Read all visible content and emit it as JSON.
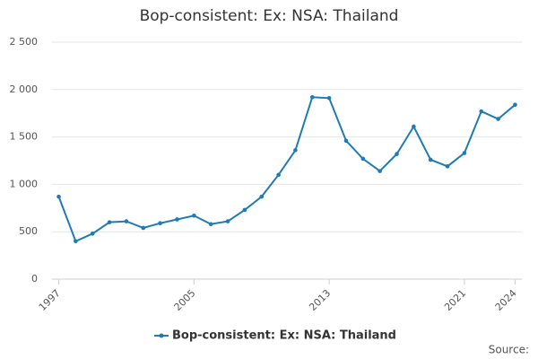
{
  "chart_data": {
    "type": "line",
    "title": "Bop-consistent: Ex: NSA: Thailand",
    "source": "Source:",
    "x": [
      1997,
      1998,
      1999,
      2000,
      2001,
      2002,
      2003,
      2004,
      2005,
      2006,
      2007,
      2008,
      2009,
      2010,
      2011,
      2012,
      2013,
      2014,
      2015,
      2016,
      2017,
      2018,
      2019,
      2020,
      2021,
      2022,
      2023,
      2024
    ],
    "series": [
      {
        "name": "Bop-consistent: Ex: NSA: Thailand",
        "color": "#1f7bb6",
        "values": [
          870,
          400,
          480,
          600,
          610,
          540,
          590,
          630,
          670,
          580,
          610,
          730,
          870,
          1100,
          1360,
          1920,
          1910,
          1460,
          1270,
          1140,
          1320,
          1610,
          1260,
          1190,
          1330,
          1770,
          1690,
          1840
        ]
      }
    ],
    "xlim": [
      1996.6,
      2024.4
    ],
    "xticks": [
      1997,
      2005,
      2013,
      2021,
      2024
    ],
    "ylim": [
      0,
      2500
    ],
    "yticks": [
      0,
      500,
      {
        "value": 1000,
        "label": "1 000"
      },
      {
        "value": 1500,
        "label": "1 500"
      },
      {
        "value": 2000,
        "label": "2 000"
      },
      {
        "value": 2500,
        "label": "2 500"
      }
    ],
    "grid": true,
    "legend": "bottom"
  }
}
